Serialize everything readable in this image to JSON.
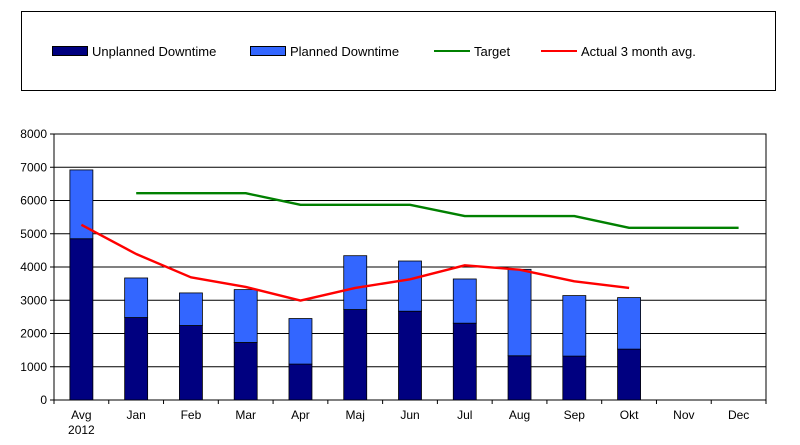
{
  "legend": {
    "unplanned": "Unplanned Downtime",
    "planned": "Planned Downtime",
    "target": "Target",
    "actual": "Actual 3 month avg."
  },
  "colors": {
    "unplanned": "#000080",
    "planned": "#3366ff",
    "target": "#008000",
    "actual": "#ff0000"
  },
  "chart_data": {
    "type": "bar",
    "stacked": true,
    "categories": [
      "Avg",
      "Jan",
      "Feb",
      "Mar",
      "Apr",
      "Maj",
      "Jun",
      "Jul",
      "Aug",
      "Sep",
      "Okt",
      "Nov",
      "Dec"
    ],
    "category_sublabels": [
      "2012",
      "",
      "",
      "",
      "",
      "",
      "",
      "",
      "",
      "",
      "",
      "",
      ""
    ],
    "series": [
      {
        "name": "Unplanned Downtime",
        "kind": "bar",
        "values": [
          4850,
          2480,
          2240,
          1730,
          1080,
          2720,
          2670,
          2310,
          1330,
          1320,
          1530,
          null,
          null
        ]
      },
      {
        "name": "Planned Downtime",
        "kind": "bar",
        "values": [
          2070,
          1190,
          980,
          1590,
          1370,
          1620,
          1510,
          1330,
          2600,
          1820,
          1550,
          null,
          null
        ]
      },
      {
        "name": "Target",
        "kind": "line",
        "values": [
          null,
          6220,
          6220,
          6220,
          5870,
          5870,
          5870,
          5530,
          5530,
          5530,
          5180,
          5180,
          5180
        ]
      },
      {
        "name": "Actual 3 month avg.",
        "kind": "line",
        "values": [
          5270,
          4390,
          3690,
          3400,
          2990,
          3370,
          3630,
          4050,
          3920,
          3570,
          3370,
          null,
          null
        ]
      }
    ],
    "ylim": [
      0,
      8000
    ],
    "yticks": [
      0,
      1000,
      2000,
      3000,
      4000,
      5000,
      6000,
      7000,
      8000
    ],
    "grid": true,
    "legend_position": "top"
  }
}
